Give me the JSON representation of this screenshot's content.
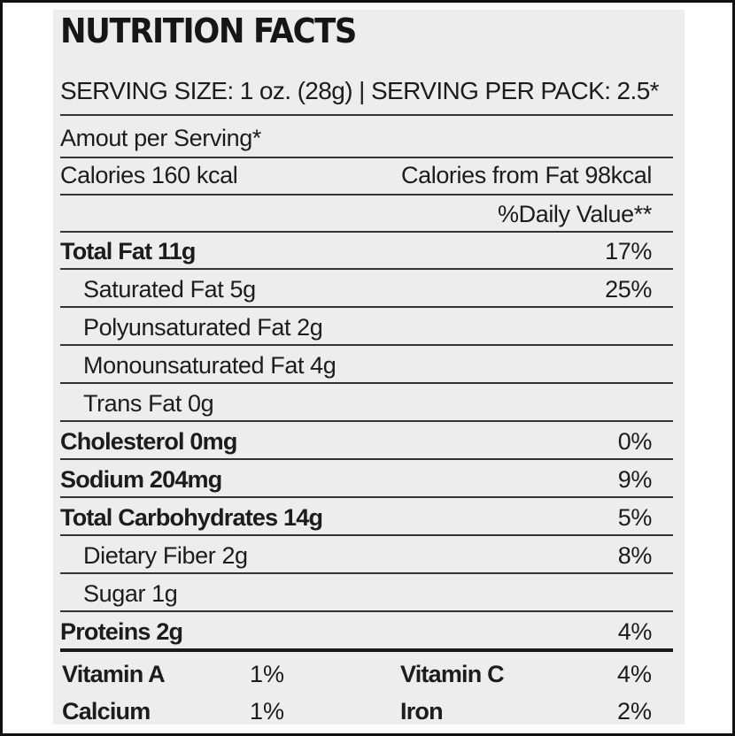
{
  "title": "NUTRITION FACTS",
  "serving_line": "SERVING SIZE: 1 oz. (28g) | SERVING PER PACK: 2.5*",
  "amount_per_serving": "Amout per Serving*",
  "calories": "Calories 160 kcal",
  "calories_from_fat": "Calories from Fat 98kcal",
  "daily_value_header": "%Daily Value**",
  "nutrients": [
    {
      "name": "Total Fat 11g",
      "value": "17%"
    },
    {
      "name": "Saturated Fat 5g",
      "value": "25%"
    },
    {
      "name": "Polyunsaturated Fat 2g",
      "value": ""
    },
    {
      "name": "Monounsaturated Fat 4g",
      "value": ""
    },
    {
      "name": "Trans Fat 0g",
      "value": ""
    },
    {
      "name": "Cholesterol 0mg",
      "value": "0%"
    },
    {
      "name": "Sodium 204mg",
      "value": "9%"
    },
    {
      "name": "Total Carbohydrates 14g",
      "value": "5%"
    },
    {
      "name": "Dietary Fiber 2g",
      "value": "8%"
    },
    {
      "name": "Sugar 1g",
      "value": ""
    },
    {
      "name": "Proteins 2g",
      "value": "4%"
    }
  ],
  "vitamins": [
    {
      "name": "Vitamin A",
      "value": "1%",
      "name2": "Vitamin C",
      "value2": "4%"
    },
    {
      "name": "Calcium",
      "value": "1%",
      "name2": "Iron",
      "value2": "2%"
    }
  ]
}
